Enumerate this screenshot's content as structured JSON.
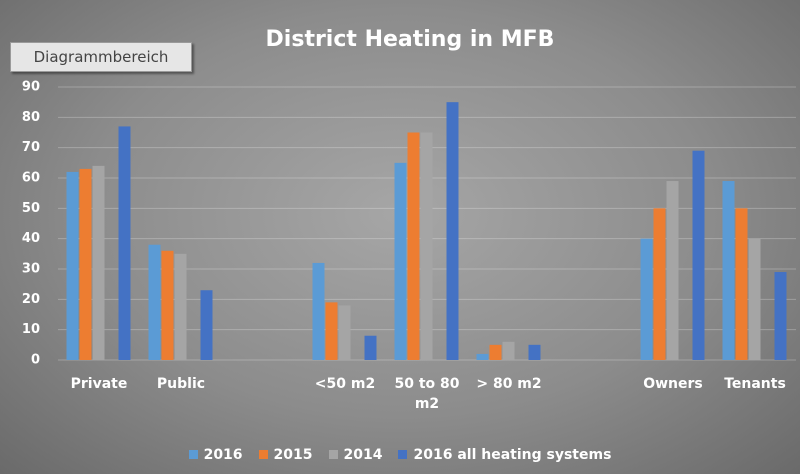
{
  "tooltip": "Diagrammbereich",
  "chart_data": {
    "type": "bar",
    "title": "District Heating in MFB",
    "categories": [
      "Private",
      "Public",
      null,
      "<50 m2",
      "50 to 80 m2",
      "> 80 m2",
      null,
      "Owners",
      "Tenants"
    ],
    "series": [
      {
        "name": "2016",
        "color": "#5b9bd5",
        "values": [
          62,
          38,
          null,
          32,
          65,
          2,
          null,
          40,
          59
        ]
      },
      {
        "name": "2015",
        "color": "#ed7d31",
        "values": [
          63,
          36,
          null,
          19,
          75,
          5,
          null,
          50,
          50
        ]
      },
      {
        "name": "2014",
        "color": "#a5a5a5",
        "values": [
          64,
          35,
          null,
          18,
          75,
          6,
          null,
          59,
          40
        ]
      },
      {
        "name": "2016 all heating systems",
        "color": "#4472c4",
        "values": [
          77,
          23,
          null,
          8,
          85,
          5,
          null,
          69,
          29
        ]
      }
    ],
    "ylim": [
      0,
      90
    ],
    "yticks": [
      0,
      10,
      20,
      30,
      40,
      50,
      60,
      70,
      80,
      90
    ],
    "grid": true,
    "legend": "bottom"
  }
}
